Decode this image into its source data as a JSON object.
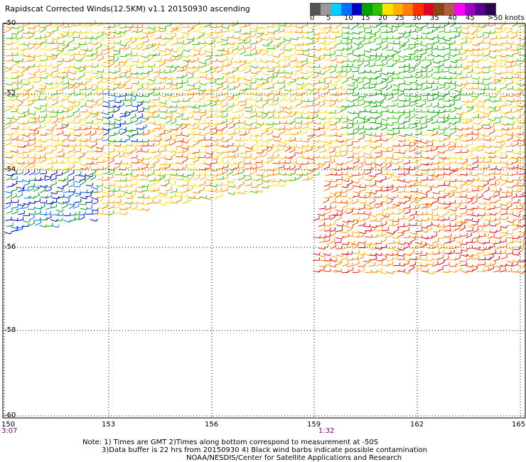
{
  "title": "Rapidscat Corrected Winds(12.5KM) v1.1 20150930 ascending",
  "legend": {
    "colors": [
      "#555555",
      "#999999",
      "#00d0ff",
      "#0070ff",
      "#0000c0",
      "#00a000",
      "#30c000",
      "#ffe000",
      "#ffb000",
      "#ff8000",
      "#ff3000",
      "#e00020",
      "#8b4513",
      "#b06040",
      "#ff00ff",
      "#a000c0",
      "#5a0090",
      "#300050"
    ],
    "labels": [
      "0",
      "5",
      "10",
      "15",
      "20",
      "25",
      "30",
      "35",
      "40",
      "45",
      ">50 knots"
    ]
  },
  "axes": {
    "lat_labels": [
      "-50",
      "-52",
      "-54",
      "-56",
      "-58",
      "-60"
    ],
    "lon_labels": [
      "150",
      "153",
      "156",
      "159",
      "162",
      "165"
    ]
  },
  "times": {
    "left": "3:07",
    "right": "1:32"
  },
  "notes": {
    "line1": "Note: 1) Times are GMT 2)Times along bottom correspond to measurement at -50S",
    "line2": "3)Data buffer is 22 hrs from 20150930 4) Black wind barbs indicate possible contamination",
    "line3": "NOAA/NESDIS/Center for Satellite Applications and Research"
  }
}
